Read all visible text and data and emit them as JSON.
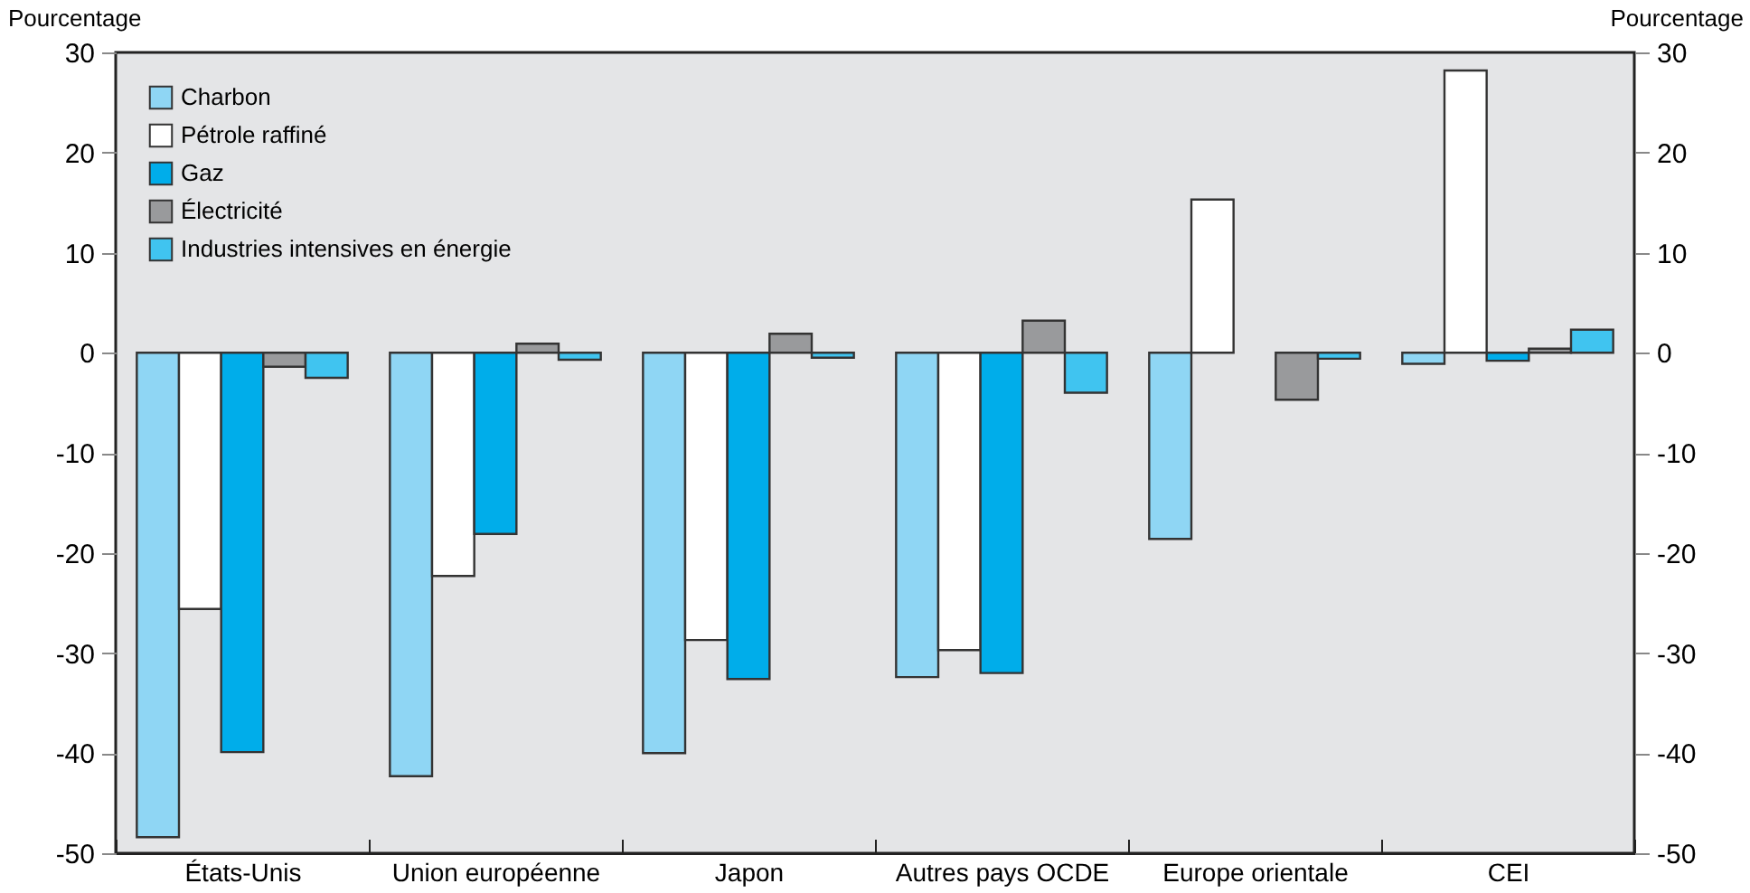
{
  "chart_data": {
    "type": "bar",
    "ylabel": "Pourcentage",
    "y2label": "Pourcentage",
    "categories": [
      "États-Unis",
      "Union européenne",
      "Japon",
      "Autres pays OCDE",
      "Europe orientale",
      "CEI"
    ],
    "series": [
      {
        "name": "Charbon",
        "color": "#8fd6f4",
        "values": [
          -48.4,
          -42.3,
          -40,
          -32.4,
          -18.6,
          -1.1
        ]
      },
      {
        "name": "Pétrole raffiné",
        "color": "#ffffff",
        "values": [
          -25.6,
          -22.3,
          -28.7,
          -29.7,
          15.3,
          28.2
        ]
      },
      {
        "name": "Gaz",
        "color": "#00adea",
        "values": [
          -39.9,
          -18.1,
          -32.6,
          -32,
          null,
          -0.8
        ]
      },
      {
        "name": "Électricité",
        "color": "#999a9c",
        "values": [
          -1.4,
          0.9,
          1.9,
          3.2,
          -4.7,
          0.4
        ]
      },
      {
        "name": "Industries intensives en énergie",
        "color": "#40c4f0",
        "values": [
          -2.5,
          -0.7,
          -0.5,
          -4,
          -0.6,
          2.3
        ]
      }
    ],
    "ylim": [
      -50,
      30
    ],
    "yticks": [
      -50,
      -40,
      -30,
      -20,
      -10,
      0,
      10,
      20,
      30
    ],
    "y2lim": [
      -50,
      30
    ],
    "y2ticks": [
      -50,
      -40,
      -30,
      -20,
      -10,
      0,
      10,
      20,
      30
    ],
    "legend": "top left",
    "grid": false
  }
}
